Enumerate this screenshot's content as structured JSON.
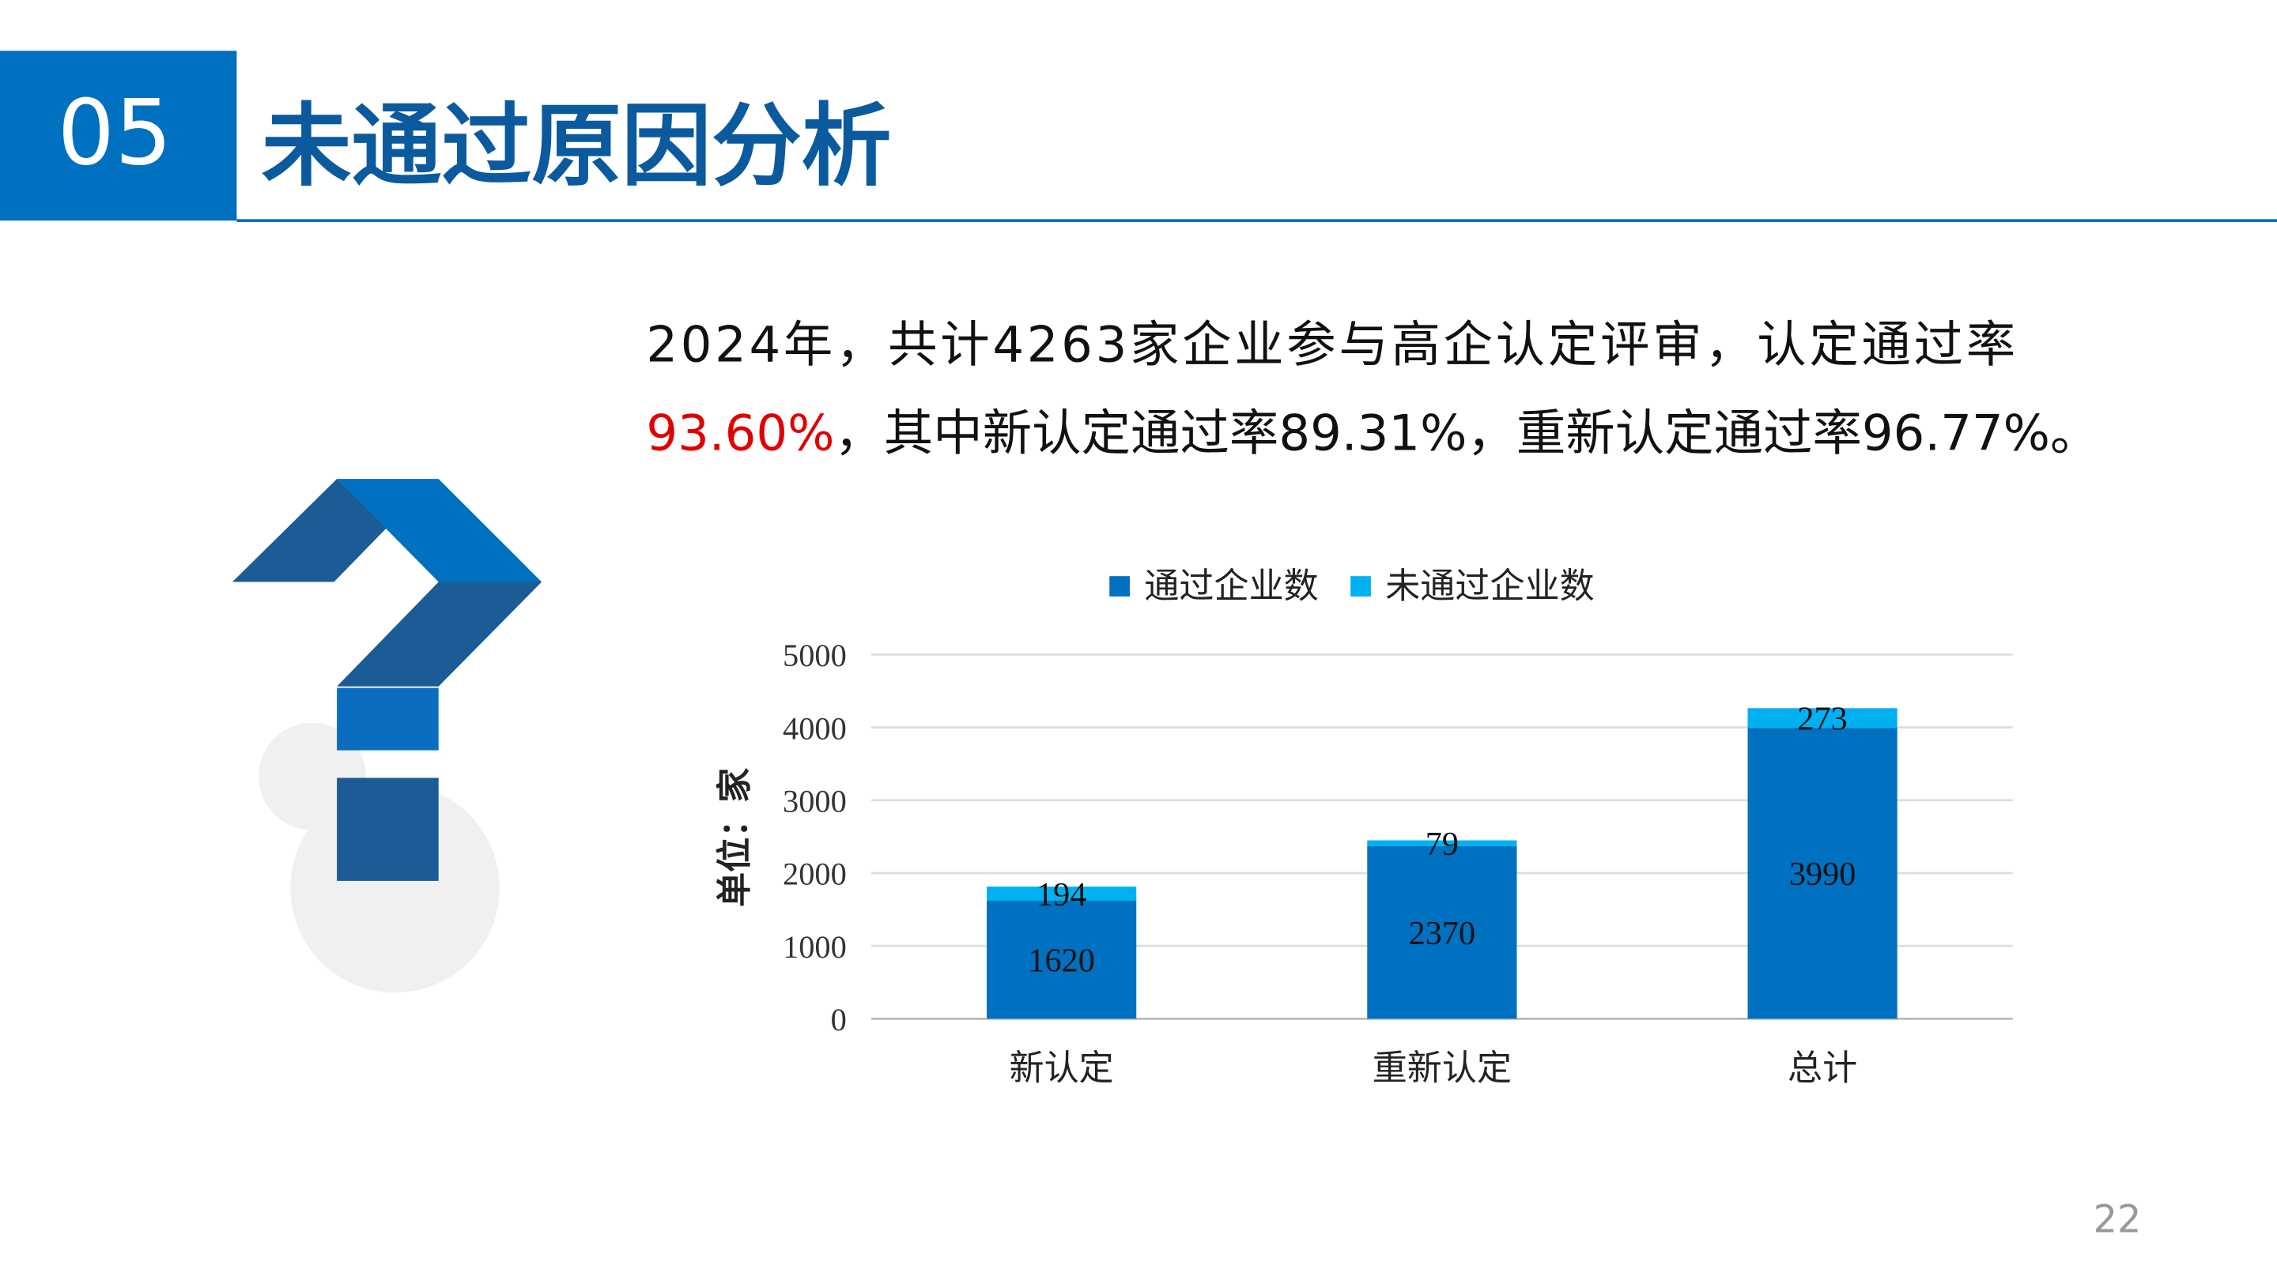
{
  "header": {
    "number": "05",
    "title": "未通过原因分析"
  },
  "summary": {
    "line1": "2024年，共计4263家企业参与高企认定评审，认定通过率",
    "highlight": "93.60%",
    "line2": "，其中新认定通过率89.31%，重新认定通过率96.77%。"
  },
  "chart_data": {
    "type": "stacked_bar",
    "categories": [
      "新认定",
      "重新认定",
      "总计"
    ],
    "series": [
      {
        "name": "通过企业数",
        "color": "#0070c0",
        "values": [
          1620,
          2370,
          3990
        ]
      },
      {
        "name": "未通过企业数",
        "color": "#00b0f0",
        "values": [
          194,
          79,
          273
        ]
      }
    ],
    "ylabel": "单位：家",
    "ylim": [
      0,
      5000
    ],
    "yticks": [
      0,
      1000,
      2000,
      3000,
      4000,
      5000
    ],
    "grid": true,
    "legend": "top"
  },
  "page_number": "22"
}
